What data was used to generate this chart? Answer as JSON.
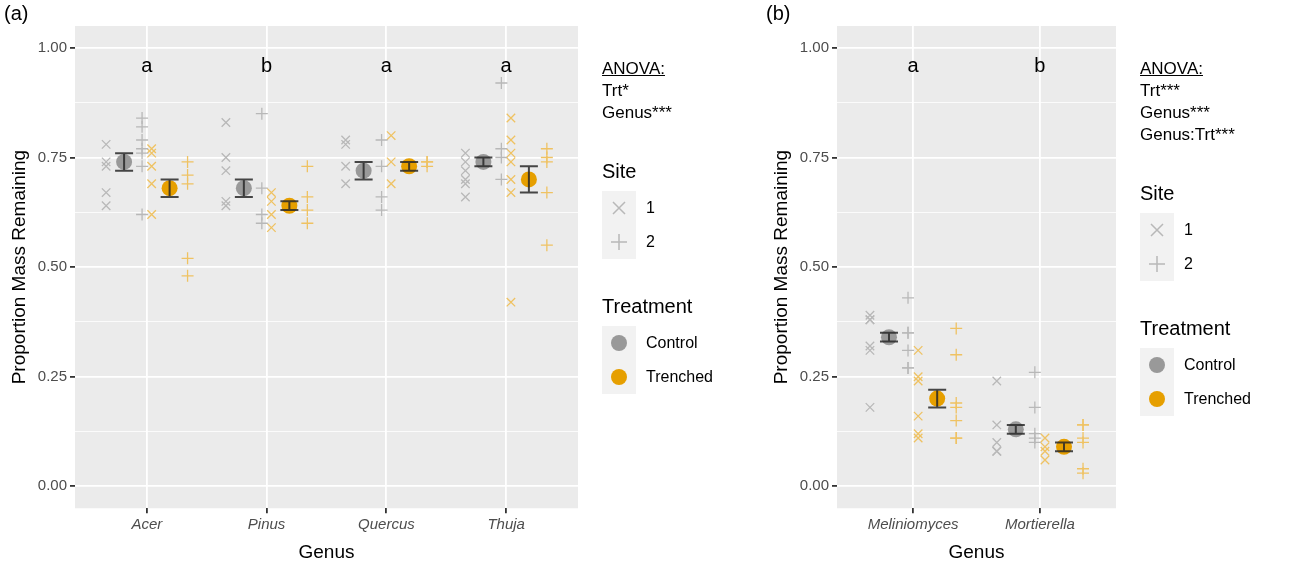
{
  "chart_data": [
    {
      "type": "scatter",
      "title": "(a)",
      "xlabel": "Genus",
      "ylabel": "Proportion Mass Remaining",
      "categories": [
        "Acer",
        "Pinus",
        "Quercus",
        "Thuja"
      ],
      "ylim": [
        -0.05,
        1.05
      ],
      "yticks": [
        {
          "value": 0,
          "label": "0.00"
        },
        {
          "value": 0.125,
          "label": null
        },
        {
          "value": 0.25,
          "label": "0.25"
        },
        {
          "value": 0.375,
          "label": null
        },
        {
          "value": 0.5,
          "label": "0.50"
        },
        {
          "value": 0.625,
          "label": null
        },
        {
          "value": 0.75,
          "label": "0.75"
        },
        {
          "value": 0.875,
          "label": null
        },
        {
          "value": 1,
          "label": "1.00"
        }
      ],
      "grid": true,
      "legend": "right",
      "legend_title": [
        "Site",
        "Treatment"
      ],
      "annotations": [
        "a",
        "b",
        "a",
        "a",
        "ANOVA:",
        "Trt*",
        "Genus***"
      ],
      "series": [
        {
          "name": "1",
          "marker": "x",
          "color": "#b8b8b8",
          "x": [
            "Acer",
            "Acer",
            "Acer",
            "Acer",
            "Acer",
            "Pinus",
            "Pinus",
            "Pinus",
            "Pinus",
            "Pinus",
            "Quercus",
            "Quercus",
            "Quercus",
            "Quercus",
            "Thuja",
            "Thuja",
            "Thuja",
            "Thuja",
            "Thuja",
            "Thuja"
          ],
          "values": [
            0.78,
            0.74,
            0.73,
            0.67,
            0.64,
            0.83,
            0.75,
            0.72,
            0.65,
            0.64,
            0.79,
            0.78,
            0.73,
            0.69,
            0.76,
            0.74,
            0.72,
            0.7,
            0.69,
            0.66
          ]
        },
        {
          "name": "2",
          "marker": "cross",
          "color": "#b8b8b8",
          "x": [
            "Acer",
            "Acer",
            "Acer",
            "Acer",
            "Acer",
            "Acer",
            "Acer",
            "Pinus",
            "Pinus",
            "Pinus",
            "Pinus",
            "Quercus",
            "Quercus",
            "Quercus",
            "Quercus",
            "Thuja",
            "Thuja",
            "Thuja",
            "Thuja"
          ],
          "values": [
            0.84,
            0.82,
            0.79,
            0.77,
            0.76,
            0.73,
            0.62,
            0.85,
            0.68,
            0.62,
            0.6,
            0.79,
            0.73,
            0.66,
            0.63,
            0.92,
            0.77,
            0.75,
            0.7
          ]
        },
        {
          "marker": "x",
          "color": "#efc262",
          "x": [
            "Acer",
            "Acer",
            "Acer",
            "Acer",
            "Acer",
            "Pinus",
            "Pinus",
            "Pinus",
            "Pinus",
            "Quercus",
            "Quercus",
            "Quercus",
            "Thuja",
            "Thuja",
            "Thuja",
            "Thuja",
            "Thuja",
            "Thuja",
            "Thuja"
          ],
          "values": [
            0.77,
            0.76,
            0.73,
            0.69,
            0.62,
            0.67,
            0.65,
            0.62,
            0.59,
            0.8,
            0.74,
            0.69,
            0.84,
            0.79,
            0.76,
            0.74,
            0.7,
            0.67,
            0.42
          ]
        },
        {
          "marker": "cross",
          "color": "#efc262",
          "x": [
            "Acer",
            "Acer",
            "Acer",
            "Acer",
            "Acer",
            "Pinus",
            "Pinus",
            "Pinus",
            "Pinus",
            "Quercus",
            "Quercus",
            "Quercus",
            "Thuja",
            "Thuja",
            "Thuja",
            "Thuja",
            "Thuja"
          ],
          "values": [
            0.74,
            0.71,
            0.69,
            0.52,
            0.48,
            0.73,
            0.66,
            0.63,
            0.6,
            0.74,
            0.74,
            0.73,
            0.77,
            0.75,
            0.74,
            0.67,
            0.55
          ]
        },
        {
          "name": "Control",
          "marker": "circle",
          "color": "#999999",
          "values": [
            0.74,
            0.68,
            0.72,
            0.74
          ],
          "errors": [
            0.02,
            0.02,
            0.02,
            0.01
          ]
        },
        {
          "name": "Trenched",
          "marker": "circle",
          "color": "#e69f00",
          "values": [
            0.68,
            0.64,
            0.73,
            0.7
          ],
          "errors": [
            0.02,
            0.01,
            0.01,
            0.03
          ]
        }
      ]
    },
    {
      "type": "scatter",
      "title": "(b)",
      "xlabel": "Genus",
      "ylabel": "Proportion Mass Remaining",
      "categories": [
        "Meliniomyces",
        "Mortierella"
      ],
      "ylim": [
        -0.05,
        1.05
      ],
      "yticks": [
        {
          "value": 0,
          "label": "0.00"
        },
        {
          "value": 0.125,
          "label": null
        },
        {
          "value": 0.25,
          "label": "0.25"
        },
        {
          "value": 0.375,
          "label": null
        },
        {
          "value": 0.5,
          "label": "0.50"
        },
        {
          "value": 0.625,
          "label": null
        },
        {
          "value": 0.75,
          "label": "0.75"
        },
        {
          "value": 0.875,
          "label": null
        },
        {
          "value": 1,
          "label": "1.00"
        }
      ],
      "grid": true,
      "legend": "right",
      "legend_title": [
        "Site",
        "Treatment"
      ],
      "annotations": [
        "a",
        "b",
        "ANOVA:",
        "Trt***",
        "Genus***",
        "Genus:Trt***"
      ],
      "series": [
        {
          "name": "1",
          "marker": "x",
          "color": "#b8b8b8",
          "x": [
            "Meliniomyces",
            "Meliniomyces",
            "Meliniomyces",
            "Meliniomyces",
            "Meliniomyces",
            "Meliniomyces",
            "Mortierella",
            "Mortierella",
            "Mortierella",
            "Mortierella",
            "Mortierella"
          ],
          "values": [
            0.38,
            0.39,
            0.38,
            0.32,
            0.31,
            0.18,
            0.24,
            0.14,
            0.1,
            0.08,
            0.08
          ]
        },
        {
          "name": "2",
          "marker": "cross",
          "color": "#b8b8b8",
          "x": [
            "Meliniomyces",
            "Meliniomyces",
            "Meliniomyces",
            "Meliniomyces",
            "Meliniomyces",
            "Meliniomyces",
            "Mortierella",
            "Mortierella",
            "Mortierella",
            "Mortierella",
            "Mortierella"
          ],
          "values": [
            0.43,
            0.35,
            0.35,
            0.31,
            0.27,
            0.27,
            0.26,
            0.18,
            0.11,
            0.1,
            0.12
          ]
        },
        {
          "marker": "x",
          "color": "#efc262",
          "x": [
            "Meliniomyces",
            "Meliniomyces",
            "Meliniomyces",
            "Meliniomyces",
            "Meliniomyces",
            "Meliniomyces",
            "Mortierella",
            "Mortierella",
            "Mortierella",
            "Mortierella"
          ],
          "values": [
            0.31,
            0.25,
            0.24,
            0.16,
            0.12,
            0.11,
            0.11,
            0.09,
            0.08,
            0.06
          ]
        },
        {
          "marker": "cross",
          "color": "#efc262",
          "x": [
            "Meliniomyces",
            "Meliniomyces",
            "Meliniomyces",
            "Meliniomyces",
            "Meliniomyces",
            "Meliniomyces",
            "Meliniomyces",
            "Mortierella",
            "Mortierella",
            "Mortierella",
            "Mortierella",
            "Mortierella",
            "Mortierella"
          ],
          "values": [
            0.36,
            0.3,
            0.19,
            0.18,
            0.15,
            0.11,
            0.11,
            0.14,
            0.14,
            0.11,
            0.1,
            0.04,
            0.03
          ]
        },
        {
          "name": "Control",
          "marker": "circle",
          "color": "#999999",
          "values": [
            0.34,
            0.13
          ],
          "errors": [
            0.01,
            0.01
          ]
        },
        {
          "name": "Trenched",
          "marker": "circle",
          "color": "#e69f00",
          "values": [
            0.2,
            0.09
          ],
          "errors": [
            0.02,
            0.01
          ]
        }
      ]
    }
  ]
}
